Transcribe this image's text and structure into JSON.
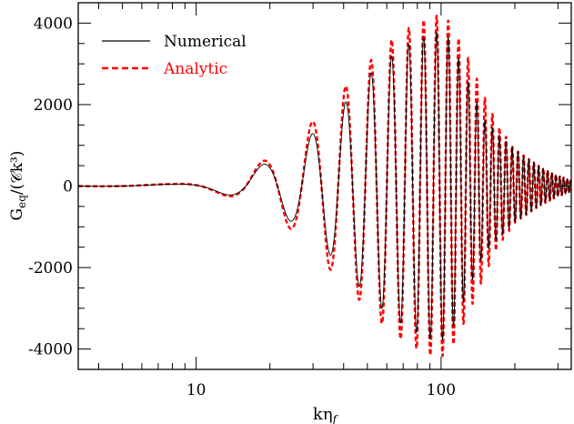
{
  "chart_data": {
    "type": "line",
    "xlabel": "kη_f",
    "ylabel": "G_eq/(𝒞k³)",
    "xscale": "log",
    "xlim": [
      3.3,
      340
    ],
    "ylim": [
      -4500,
      4500
    ],
    "xticks": [
      10,
      100
    ],
    "xtick_labels": [
      "10",
      "100"
    ],
    "yticks": [
      -4000,
      -2000,
      0,
      2000,
      4000
    ],
    "ytick_labels": [
      "-4000",
      "-2000",
      "0",
      "2000",
      "4000"
    ],
    "grid": false,
    "legend_position": "top-left",
    "x": [
      3.3,
      5,
      8,
      10,
      12,
      15,
      20,
      25,
      30,
      40,
      50,
      60,
      70,
      80,
      90,
      100,
      110,
      130,
      150,
      170,
      200,
      250,
      300,
      340
    ],
    "series": [
      {
        "name": "Numerical",
        "color": "#000000",
        "style": "solid",
        "envelope": [
          0,
          20,
          45,
          80,
          150,
          280,
          600,
          900,
          1300,
          2000,
          2700,
          3100,
          3400,
          3600,
          3750,
          3800,
          3600,
          2500,
          1650,
          1300,
          900,
          500,
          250,
          150
        ]
      },
      {
        "name": "Analytic",
        "color": "#ff0000",
        "style": "dashed",
        "envelope": [
          0,
          25,
          50,
          90,
          170,
          320,
          700,
          1100,
          1600,
          2400,
          3000,
          3500,
          3800,
          4000,
          4150,
          4200,
          4000,
          3100,
          2200,
          1500,
          900,
          500,
          250,
          150
        ]
      }
    ]
  }
}
